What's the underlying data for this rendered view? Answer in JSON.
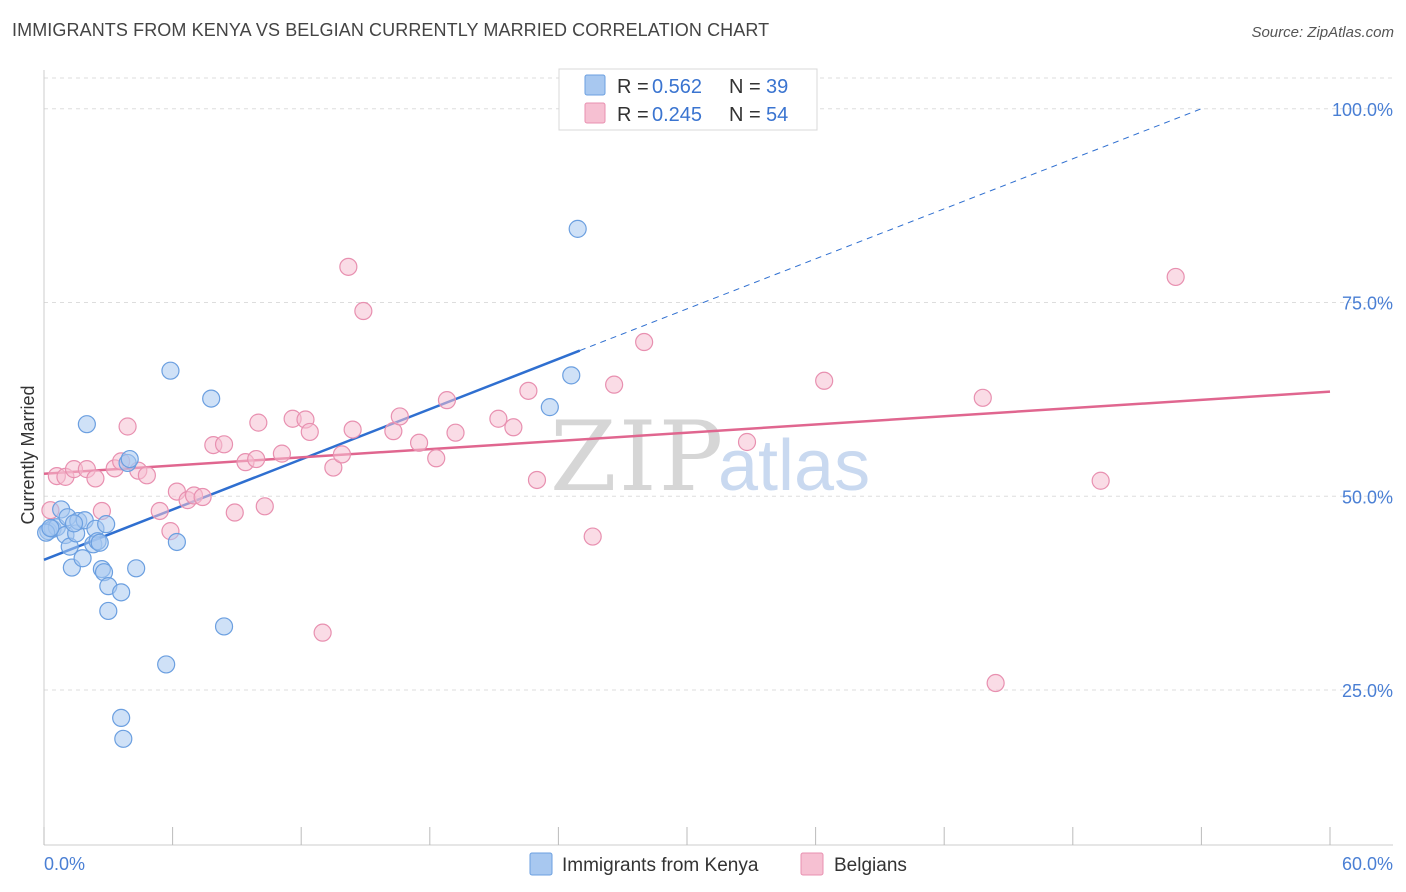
{
  "header": {
    "title": "IMMIGRANTS FROM KENYA VS BELGIAN CURRENTLY MARRIED CORRELATION CHART",
    "source": "Source: ZipAtlas.com"
  },
  "watermark": {
    "zip": "ZIP",
    "atlas": "atlas"
  },
  "colors": {
    "kenya_fill": "#a8c8f0",
    "kenya_stroke": "#6b9fe0",
    "kenya_line": "#2f6fd0",
    "belgian_fill": "#f6c0d2",
    "belgian_stroke": "#e890b0",
    "belgian_line": "#e0668f",
    "axis_text": "#4a7fd4",
    "grid": "#dddddd"
  },
  "chart_data": {
    "type": "scatter",
    "title": "IMMIGRANTS FROM KENYA VS BELGIAN CURRENTLY MARRIED CORRELATION CHART",
    "xlabel": "",
    "ylabel": "Currently Married",
    "xlim": [
      0,
      60
    ],
    "ylim": [
      5,
      105
    ],
    "x_tick_labels": [
      "0.0%",
      "60.0%"
    ],
    "y_ticks": [
      25,
      50,
      75,
      100
    ],
    "y_tick_labels": [
      "25.0%",
      "50.0%",
      "75.0%",
      "100.0%"
    ],
    "grid": true,
    "legend_top": [
      {
        "r_label": "R = ",
        "r_value": "0.562",
        "n_label": "N = ",
        "n_value": "39"
      },
      {
        "r_label": "R = ",
        "r_value": "0.245",
        "n_label": "N = ",
        "n_value": "54"
      }
    ],
    "series": [
      {
        "name": "Immigrants from Kenya",
        "trend": {
          "x0": 0,
          "y0": 41.8,
          "x1": 25,
          "y1": 68.8,
          "dash_to_x": 54,
          "dash_to_y": 100
        },
        "points": [
          [
            0.2,
            45.5
          ],
          [
            0.4,
            45.8
          ],
          [
            0.6,
            46.0
          ],
          [
            0.8,
            48.3
          ],
          [
            1.0,
            45.0
          ],
          [
            1.1,
            47.3
          ],
          [
            1.2,
            43.5
          ],
          [
            1.3,
            40.8
          ],
          [
            1.5,
            45.2
          ],
          [
            1.6,
            46.8
          ],
          [
            1.8,
            42.0
          ],
          [
            1.9,
            46.9
          ],
          [
            2.0,
            59.3
          ],
          [
            2.3,
            43.8
          ],
          [
            2.4,
            45.8
          ],
          [
            2.5,
            44.2
          ],
          [
            2.7,
            40.6
          ],
          [
            2.8,
            40.2
          ],
          [
            2.9,
            46.4
          ],
          [
            3.0,
            38.4
          ],
          [
            3.0,
            35.2
          ],
          [
            3.6,
            37.6
          ],
          [
            3.6,
            21.4
          ],
          [
            3.7,
            18.7
          ],
          [
            3.9,
            54.3
          ],
          [
            4.0,
            54.8
          ],
          [
            4.3,
            40.7
          ],
          [
            5.7,
            28.3
          ],
          [
            5.9,
            66.2
          ],
          [
            6.2,
            44.1
          ],
          [
            7.8,
            62.6
          ],
          [
            8.4,
            33.2
          ],
          [
            23.6,
            61.5
          ],
          [
            24.6,
            65.6
          ],
          [
            24.9,
            84.5
          ],
          [
            0.1,
            45.3
          ],
          [
            0.3,
            45.9
          ],
          [
            1.4,
            46.5
          ],
          [
            2.6,
            44.0
          ]
        ]
      },
      {
        "name": "Belgians",
        "trend": {
          "x0": 0,
          "y0": 52.9,
          "x1": 60,
          "y1": 63.5
        },
        "points": [
          [
            0.3,
            48.2
          ],
          [
            0.6,
            52.6
          ],
          [
            1.0,
            52.5
          ],
          [
            1.4,
            53.5
          ],
          [
            2.0,
            53.5
          ],
          [
            2.4,
            52.3
          ],
          [
            2.7,
            48.1
          ],
          [
            3.3,
            53.6
          ],
          [
            3.6,
            54.5
          ],
          [
            3.9,
            59.0
          ],
          [
            4.4,
            53.3
          ],
          [
            4.8,
            52.7
          ],
          [
            5.4,
            48.1
          ],
          [
            5.9,
            45.5
          ],
          [
            6.2,
            50.6
          ],
          [
            6.7,
            49.5
          ],
          [
            7.0,
            50.1
          ],
          [
            7.4,
            49.9
          ],
          [
            7.9,
            56.6
          ],
          [
            8.4,
            56.7
          ],
          [
            8.9,
            47.9
          ],
          [
            9.4,
            54.4
          ],
          [
            9.9,
            54.8
          ],
          [
            10.0,
            59.5
          ],
          [
            10.3,
            48.7
          ],
          [
            11.1,
            55.5
          ],
          [
            11.6,
            60.0
          ],
          [
            12.2,
            59.9
          ],
          [
            12.4,
            58.3
          ],
          [
            13.0,
            32.4
          ],
          [
            13.5,
            53.7
          ],
          [
            13.9,
            55.4
          ],
          [
            14.2,
            79.6
          ],
          [
            14.4,
            58.6
          ],
          [
            14.9,
            73.9
          ],
          [
            16.3,
            58.4
          ],
          [
            16.6,
            60.3
          ],
          [
            17.5,
            56.9
          ],
          [
            18.3,
            54.9
          ],
          [
            18.8,
            62.4
          ],
          [
            19.2,
            58.2
          ],
          [
            21.2,
            60.0
          ],
          [
            21.9,
            58.9
          ],
          [
            22.6,
            63.6
          ],
          [
            23.0,
            52.1
          ],
          [
            25.6,
            44.8
          ],
          [
            26.6,
            64.4
          ],
          [
            28.0,
            69.9
          ],
          [
            32.8,
            57.0
          ],
          [
            36.4,
            64.9
          ],
          [
            43.8,
            62.7
          ],
          [
            44.4,
            25.9
          ],
          [
            49.3,
            52.0
          ],
          [
            52.8,
            78.3
          ]
        ]
      }
    ]
  },
  "legend_bottom": {
    "kenya_label": "Immigrants from Kenya",
    "belgian_label": "Belgians"
  }
}
